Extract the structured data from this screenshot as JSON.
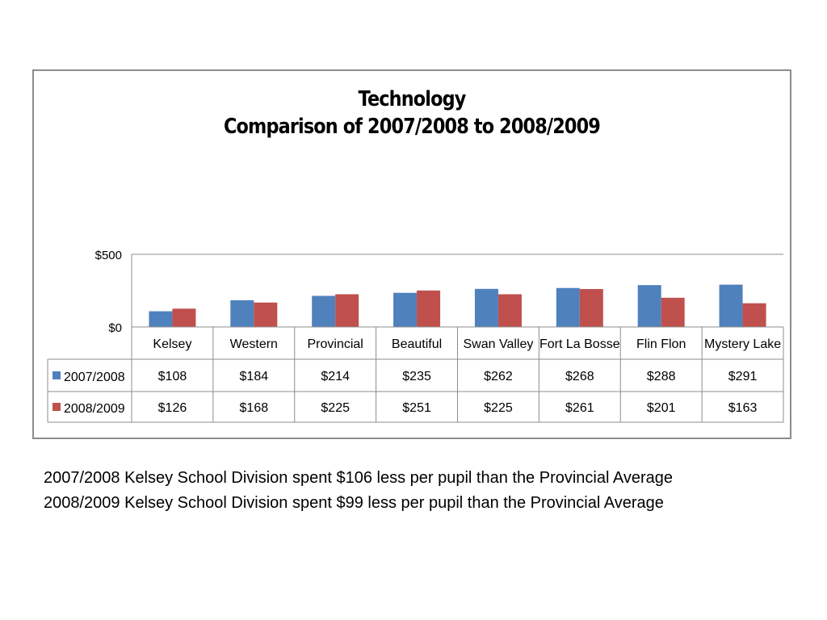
{
  "chart_data": {
    "type": "bar",
    "title_lines": [
      "Technology",
      "Comparison of 2007/2008 to 2008/2009"
    ],
    "categories": [
      "Kelsey",
      "Western",
      "Provincial",
      "Beautiful",
      "Swan Valley",
      "Fort La Bosse",
      "Flin Flon",
      "Mystery Lake"
    ],
    "series": [
      {
        "name": "2007/2008",
        "color": "#4f81bd",
        "values": [
          108,
          184,
          214,
          235,
          262,
          268,
          288,
          291
        ]
      },
      {
        "name": "2008/2009",
        "color": "#c0504d",
        "values": [
          126,
          168,
          225,
          251,
          225,
          261,
          201,
          163
        ]
      }
    ],
    "value_format_prefix": "$",
    "y_ticks": [
      "$500",
      "$0"
    ],
    "ylim": [
      0,
      500
    ],
    "grid": true,
    "legend_placement": "data table",
    "data_table": true
  },
  "notes": [
    "2007/2008 Kelsey School Division spent $106 less per pupil than the Provincial Average",
    "2008/2009 Kelsey School Division spent $99 less per pupil than the Provincial Average"
  ]
}
